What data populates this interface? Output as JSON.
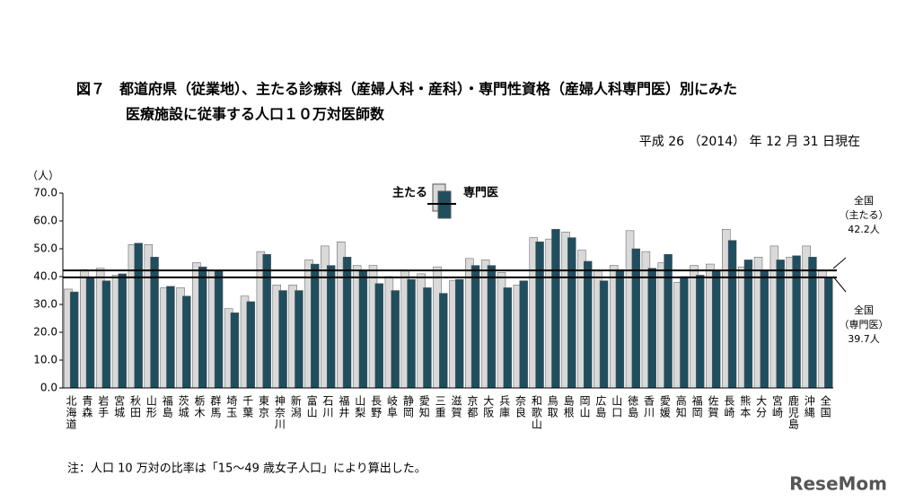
{
  "chart_data": {
    "type": "bar",
    "title": [
      "図７　都道府県（従業地）、主たる診療科（産婦人科・産科）・専門性資格（産婦人科専門医）別にみた",
      "医療施設に従事する人口１０万対医師数"
    ],
    "subtitle": "平成 26 （2014） 年 12 月 31 日現在",
    "y_label": "（人）",
    "note": "注：人口 10 万対の比率は「15～49 歳女子人口」により算出した。",
    "watermark": "ReseMom",
    "categories": [
      "北海道",
      "青森",
      "岩手",
      "宮城",
      "秋田",
      "山形",
      "福島",
      "茨城",
      "栃木",
      "群馬",
      "埼玉",
      "千葉",
      "東京",
      "神奈川",
      "新潟",
      "富山",
      "石川",
      "福井",
      "山梨",
      "長野",
      "岐阜",
      "静岡",
      "愛知",
      "三重",
      "滋賀",
      "京都",
      "大阪",
      "兵庫",
      "奈良",
      "和歌山",
      "鳥取",
      "島根",
      "岡山",
      "広島",
      "山口",
      "徳島",
      "香川",
      "愛媛",
      "高知",
      "福岡",
      "佐賀",
      "長崎",
      "熊本",
      "大分",
      "宮崎",
      "鹿児島",
      "沖縄",
      "全国"
    ],
    "series": [
      {
        "name": "主たる",
        "color": "#d9d9d9",
        "values": [
          35.5,
          42.5,
          43,
          40.5,
          51.5,
          51.5,
          36,
          36,
          45,
          42,
          28.5,
          33,
          49,
          37,
          37,
          46,
          51,
          52.5,
          44,
          44,
          40,
          42,
          41,
          43.5,
          38.5,
          46.5,
          46,
          41.5,
          37,
          54,
          53.5,
          56,
          49.5,
          42,
          44,
          56.5,
          49,
          45,
          38,
          44,
          44.5,
          57,
          43.5,
          47,
          51,
          47,
          51,
          42.2
        ]
      },
      {
        "name": "専門医",
        "color": "#1f4e5f",
        "values": [
          34.5,
          39.5,
          38.5,
          41,
          52,
          47,
          36.5,
          33,
          43.5,
          42,
          27,
          31,
          48,
          35,
          35,
          44.5,
          44,
          47,
          42,
          37.5,
          35,
          39,
          36,
          34,
          39,
          44,
          44,
          36,
          38.5,
          52.5,
          57,
          54,
          45.5,
          38.5,
          42.5,
          50,
          43,
          48,
          40,
          40.5,
          42,
          53,
          46,
          42,
          46,
          47.5,
          47,
          39.7
        ]
      }
    ],
    "annotations": [
      [
        "全国",
        "（主たる）",
        "42.2人"
      ],
      [
        "全国",
        "（専門医）",
        "39.7人"
      ]
    ],
    "ylim": [
      0,
      70
    ],
    "yticks": [
      {
        "value": 0,
        "label": "0.0"
      },
      {
        "value": 10,
        "label": "10.0"
      },
      {
        "value": 20,
        "label": "20.0"
      },
      {
        "value": 30,
        "label": "30.0"
      },
      {
        "value": 40,
        "label": "40.0"
      },
      {
        "value": 50,
        "label": "50.0"
      },
      {
        "value": 60,
        "label": "60.0"
      },
      {
        "value": 70,
        "label": "70.0"
      }
    ],
    "grid": false
  }
}
